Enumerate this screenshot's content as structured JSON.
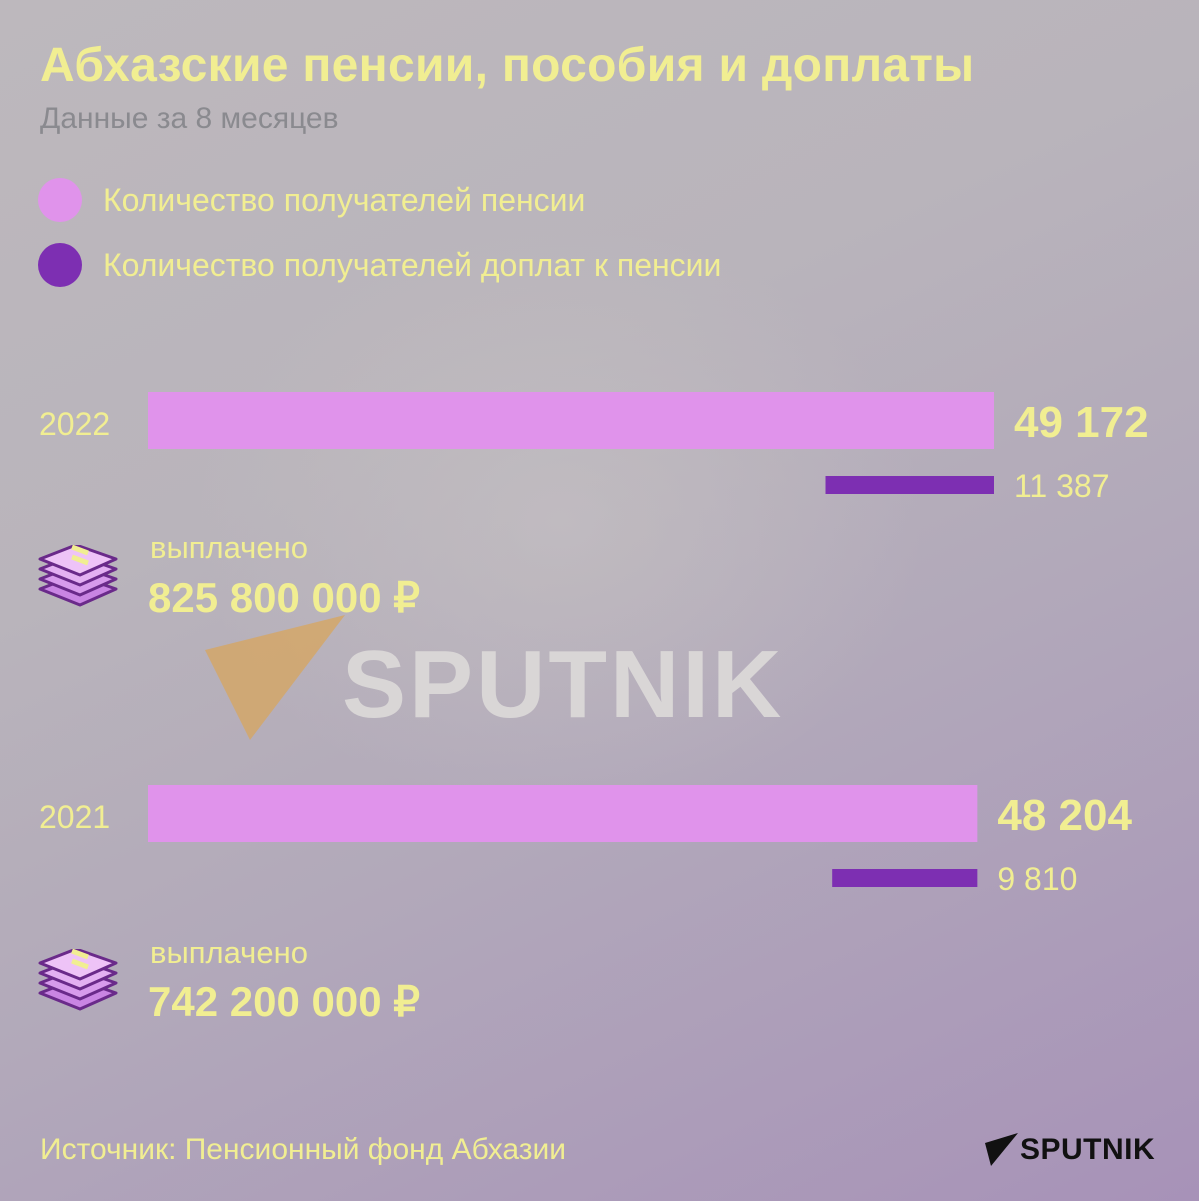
{
  "title": "Абхазские пенсии, пособия и доплаты",
  "subtitle": "Данные за 8 месяцев",
  "colors": {
    "pension_bar": "#e093eb",
    "supplement_bar": "#7d2fb2",
    "text_accent": "#f1ee92",
    "subtitle_gray": "#8a8a8f"
  },
  "legend": [
    {
      "label": "Количество получателей пенсии",
      "color": "#e093eb"
    },
    {
      "label": "Количество получателей доплат к пенсии",
      "color": "#7d2fb2"
    }
  ],
  "chart_data": {
    "type": "bar",
    "orientation": "horizontal",
    "categories": [
      "2022",
      "2021"
    ],
    "series": [
      {
        "name": "Количество получателей пенсии",
        "values": [
          49172,
          48204
        ],
        "labels": [
          "49 172",
          "48 204"
        ]
      },
      {
        "name": "Количество получателей доплат к пенсии",
        "values": [
          11387,
          9810
        ],
        "labels": [
          "11 387",
          "9 810"
        ]
      }
    ],
    "legend_position": "top-left",
    "grid": false
  },
  "payments": [
    {
      "year": "2022",
      "label": "выплачено",
      "value": "825 800 000 ₽",
      "icon": "money-stack-icon"
    },
    {
      "year": "2021",
      "label": "выплачено",
      "value": "742 200 000 ₽",
      "icon": "money-stack-icon"
    }
  ],
  "watermark": "SPUTNIK",
  "source": "Источник:  Пенсионный фонд Абхазии",
  "brand": "SPUTNIK"
}
